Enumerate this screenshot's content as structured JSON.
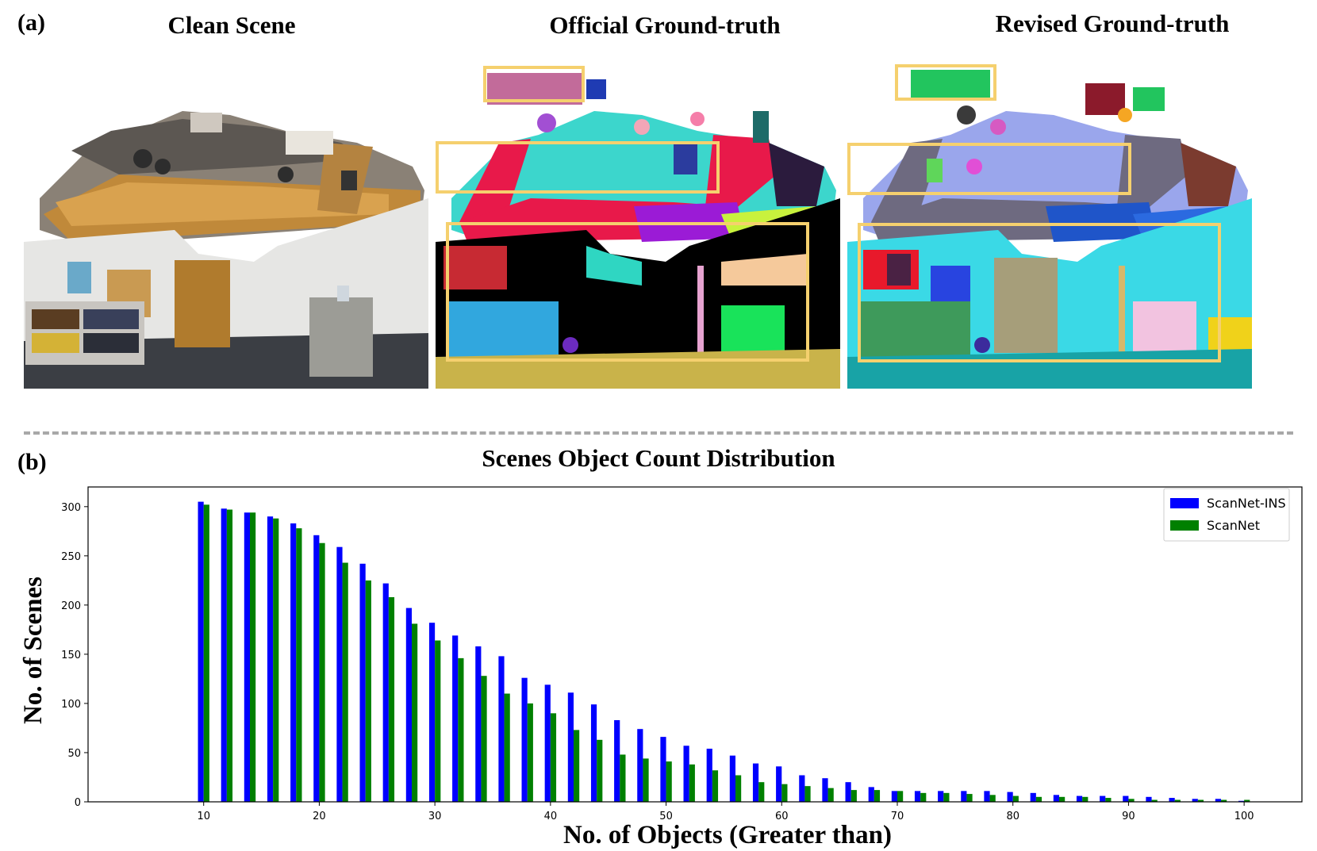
{
  "panel_a": {
    "label": "(a)",
    "columns": [
      {
        "title": "Clean Scene"
      },
      {
        "title": "Official Ground-truth"
      },
      {
        "title": "Revised Ground-truth"
      }
    ],
    "highlight_color": "#f5d06e"
  },
  "panel_b": {
    "label": "(b)"
  },
  "chart_data": {
    "type": "bar",
    "title": "Scenes Object Count Distribution",
    "xlabel": "No. of Objects (Greater than)",
    "ylabel": "No. of Scenes",
    "x": [
      10,
      12,
      14,
      16,
      18,
      20,
      22,
      24,
      26,
      28,
      30,
      32,
      34,
      36,
      38,
      40,
      42,
      44,
      46,
      48,
      50,
      52,
      54,
      56,
      58,
      60,
      62,
      64,
      66,
      68,
      70,
      72,
      74,
      76,
      78,
      80,
      82,
      84,
      86,
      88,
      90,
      92,
      94,
      96,
      98,
      100
    ],
    "xlim": [
      0,
      105
    ],
    "ylim": [
      0,
      320
    ],
    "xticks": [
      10,
      20,
      30,
      40,
      50,
      60,
      70,
      80,
      90,
      100
    ],
    "yticks": [
      0,
      50,
      100,
      150,
      200,
      250,
      300
    ],
    "grid": false,
    "legend": "top-right",
    "series": [
      {
        "name": "ScanNet-INS",
        "color": "#0000ff",
        "values": [
          305,
          298,
          294,
          290,
          283,
          271,
          259,
          242,
          222,
          197,
          182,
          169,
          158,
          148,
          126,
          119,
          111,
          99,
          83,
          74,
          66,
          57,
          54,
          47,
          39,
          36,
          27,
          24,
          20,
          15,
          11,
          11,
          11,
          11,
          11,
          10,
          9,
          7,
          6,
          6,
          6,
          5,
          4,
          3,
          3,
          1
        ]
      },
      {
        "name": "ScanNet",
        "color": "#008000",
        "values": [
          302,
          297,
          294,
          288,
          278,
          263,
          243,
          225,
          208,
          181,
          164,
          146,
          128,
          110,
          100,
          90,
          73,
          63,
          48,
          44,
          41,
          38,
          32,
          27,
          20,
          18,
          16,
          14,
          12,
          12,
          11,
          9,
          9,
          8,
          7,
          6,
          5,
          5,
          5,
          4,
          3,
          2,
          2,
          2,
          2,
          2
        ]
      }
    ]
  }
}
